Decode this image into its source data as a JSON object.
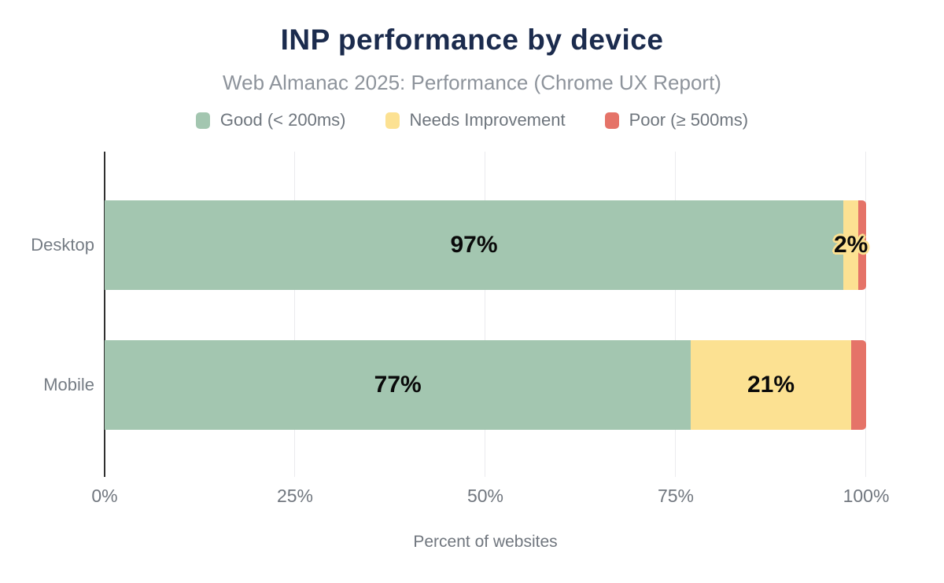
{
  "title": "INP performance by device",
  "subtitle": "Web Almanac 2025: Performance (Chrome UX Report)",
  "legend": [
    {
      "label": "Good (< 200ms)",
      "color": "#a3c6b0"
    },
    {
      "label": "Needs Improvement",
      "color": "#fce192"
    },
    {
      "label": "Poor (≥ 500ms)",
      "color": "#e57368"
    }
  ],
  "chart_data": {
    "type": "bar",
    "orientation": "horizontal",
    "stacked": true,
    "title": "INP performance by device",
    "subtitle": "Web Almanac 2025: Performance (Chrome UX Report)",
    "categories": [
      "Desktop",
      "Mobile"
    ],
    "series": [
      {
        "name": "Good (< 200ms)",
        "color": "#a3c6b0",
        "values": [
          97,
          77
        ],
        "value_labels": [
          "97%",
          "77%"
        ]
      },
      {
        "name": "Needs Improvement",
        "color": "#fce192",
        "values": [
          2,
          21
        ],
        "value_labels": [
          "2%",
          "21%"
        ]
      },
      {
        "name": "Poor (≥ 500ms)",
        "color": "#e57368",
        "values": [
          1,
          2
        ],
        "value_labels": [
          "",
          ""
        ]
      }
    ],
    "xlabel": "Percent of websites",
    "ylabel": "",
    "xlim": [
      0,
      100
    ],
    "x_ticks": [
      {
        "value": 0,
        "label": "0%"
      },
      {
        "value": 25,
        "label": "25%"
      },
      {
        "value": 50,
        "label": "50%"
      },
      {
        "value": 75,
        "label": "75%"
      },
      {
        "value": 100,
        "label": "100%"
      }
    ],
    "grid": "vertical-gridlines",
    "legend_position": "top"
  },
  "colors": {
    "background": "#ffffff",
    "title": "#1b2b4d",
    "subtitle": "#8d939b",
    "axis_line": "#2f2f2f",
    "gridline": "#ebebee",
    "tick_text": "#70767e",
    "category_text": "#757c84",
    "value_label_text": "#0a0a0a"
  }
}
